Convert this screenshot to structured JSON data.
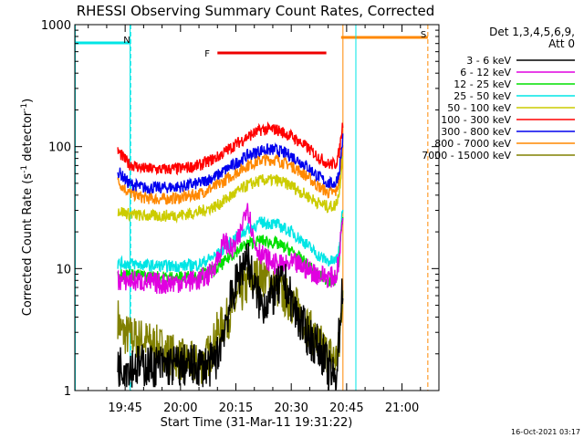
{
  "chart_data": {
    "type": "line",
    "title": "RHESSI Observing Summary Count Rates, Corrected",
    "xlabel": "Start Time (31-Mar-11 19:31:22)",
    "ylabel": "Corrected Count Rate (s",
    "ylabel_sup": "-1",
    "ylabel_mid": " detector",
    "ylabel_end": ")",
    "y_scale": "log",
    "ylim": [
      1,
      1000
    ],
    "xlim": [
      "19:31:22",
      "21:10:00"
    ],
    "x_ticks": [
      "19:45",
      "20:00",
      "20:15",
      "20:30",
      "20:45",
      "21:00"
    ],
    "y_ticks": [
      "1",
      "10",
      "100",
      "1000"
    ],
    "legend_title_1": "Det 1,3,4,5,6,9,",
    "legend_title_2": "Att 0",
    "legend_position": "top-right",
    "footer_date": "16-Oct-2021 03:17",
    "flags": [
      {
        "label": "N",
        "color": "#00e5e5",
        "start": "19:31:22",
        "end": "19:46:30",
        "edge_line": "19:46:30"
      },
      {
        "label": "F",
        "color": "#ee0000",
        "start": "20:10:00",
        "end": "20:39:30"
      },
      {
        "label": "S",
        "color": "#ff8800",
        "start": "20:43:30",
        "end": "21:07:00",
        "edge_line": "21:07:00"
      }
    ],
    "series": [
      {
        "name": "3 - 6 keV",
        "color": "#000000",
        "x": [
          "19:43",
          "19:44",
          "19:46",
          "19:50",
          "19:55",
          "20:00",
          "20:05",
          "20:08",
          "20:10",
          "20:12",
          "20:14",
          "20:16",
          "20:18",
          "20:20",
          "20:22",
          "20:25",
          "20:28",
          "20:31",
          "20:34",
          "20:36",
          "20:38",
          "20:40",
          "20:42",
          "20:43",
          "20:44"
        ],
        "y": [
          1.6,
          1.6,
          1.6,
          1.6,
          1.6,
          1.6,
          1.6,
          1.6,
          1.9,
          3.5,
          6,
          9,
          13,
          7,
          5,
          6,
          8,
          4.5,
          3,
          2.5,
          2.2,
          1.5,
          1.2,
          3,
          8
        ]
      },
      {
        "name": "6 - 12 keV",
        "color": "#e000e0",
        "x": [
          "19:43",
          "19:46",
          "19:50",
          "19:55",
          "20:00",
          "20:05",
          "20:08",
          "20:10",
          "20:12",
          "20:14",
          "20:16",
          "20:18",
          "20:20",
          "20:22",
          "20:25",
          "20:28",
          "20:31",
          "20:34",
          "20:37",
          "20:40",
          "20:42",
          "20:43",
          "20:44"
        ],
        "y": [
          8,
          8,
          7.8,
          7.5,
          7.8,
          8,
          9,
          12,
          17,
          14,
          18,
          35,
          16,
          13,
          11,
          10.5,
          11,
          10,
          9,
          8.5,
          8.5,
          12,
          30
        ]
      },
      {
        "name": "12 - 25 keV",
        "color": "#00e000",
        "x": [
          "19:43",
          "19:46",
          "19:50",
          "19:55",
          "20:00",
          "20:05",
          "20:10",
          "20:14",
          "20:18",
          "20:22",
          "20:26",
          "20:30",
          "20:34",
          "20:37",
          "20:40",
          "20:42",
          "20:43",
          "20:44"
        ],
        "y": [
          9,
          9,
          8.7,
          8.5,
          8.5,
          8.8,
          10,
          13,
          16,
          17,
          16,
          14,
          11,
          9,
          8,
          8,
          12,
          30
        ]
      },
      {
        "name": "25 - 50 keV",
        "color": "#00e5e5",
        "x": [
          "19:43",
          "19:46",
          "19:50",
          "19:55",
          "20:00",
          "20:05",
          "20:10",
          "20:14",
          "20:18",
          "20:22",
          "20:26",
          "20:30",
          "20:34",
          "20:37",
          "20:40",
          "20:42",
          "20:43",
          "20:44"
        ],
        "y": [
          11,
          11,
          10.7,
          10.5,
          10.5,
          10.8,
          13,
          17,
          21,
          24,
          23,
          20,
          16,
          13,
          11.5,
          11.5,
          14,
          35
        ]
      },
      {
        "name": "50 - 100 keV",
        "color": "#cccc00",
        "x": [
          "19:43",
          "19:46",
          "19:50",
          "19:55",
          "20:00",
          "20:05",
          "20:10",
          "20:14",
          "20:18",
          "20:22",
          "20:26",
          "20:30",
          "20:34",
          "20:37",
          "20:40",
          "20:42",
          "20:43",
          "20:44"
        ],
        "y": [
          30,
          28,
          27,
          27,
          27.5,
          29,
          33,
          40,
          48,
          53,
          53,
          48,
          40,
          35,
          32,
          33,
          42,
          90
        ]
      },
      {
        "name": "100 - 300 keV",
        "color": "#ff0000",
        "x": [
          "19:43",
          "19:46",
          "19:50",
          "19:55",
          "20:00",
          "20:05",
          "20:10",
          "20:14",
          "20:18",
          "20:22",
          "20:26",
          "20:30",
          "20:34",
          "20:37",
          "20:40",
          "20:42",
          "20:43",
          "20:44"
        ],
        "y": [
          92,
          72,
          66,
          65,
          66,
          70,
          82,
          100,
          120,
          138,
          138,
          122,
          100,
          84,
          72,
          72,
          90,
          160
        ]
      },
      {
        "name": "300 - 800 keV",
        "color": "#0000ee",
        "x": [
          "19:43",
          "19:46",
          "19:50",
          "19:55",
          "20:00",
          "20:05",
          "20:10",
          "20:14",
          "20:18",
          "20:22",
          "20:26",
          "20:30",
          "20:34",
          "20:37",
          "20:40",
          "20:42",
          "20:43",
          "20:44"
        ],
        "y": [
          63,
          50,
          46,
          46,
          47,
          50,
          58,
          70,
          84,
          94,
          94,
          84,
          70,
          58,
          50,
          50,
          62,
          120
        ]
      },
      {
        "name": "800 - 7000 keV",
        "color": "#ff8800",
        "x": [
          "19:43",
          "19:46",
          "19:50",
          "19:55",
          "20:00",
          "20:05",
          "20:10",
          "20:14",
          "20:18",
          "20:22",
          "20:26",
          "20:30",
          "20:34",
          "20:37",
          "20:40",
          "20:42",
          "20:43",
          "20:44"
        ],
        "y": [
          52,
          42,
          38,
          37,
          38,
          41,
          48,
          58,
          70,
          78,
          78,
          70,
          58,
          48,
          42,
          42,
          52,
          100
        ]
      },
      {
        "name": "7000 - 15000 keV",
        "color": "#808000",
        "x": [
          "19:43",
          "19:44",
          "19:46",
          "19:50",
          "19:55",
          "20:00",
          "20:05",
          "20:08",
          "20:10",
          "20:13",
          "20:16",
          "20:19",
          "20:22",
          "20:25",
          "20:28",
          "20:31",
          "20:34",
          "20:37",
          "20:40",
          "20:42",
          "20:43",
          "20:44"
        ],
        "y": [
          4,
          3,
          2.8,
          2.6,
          2.2,
          1.8,
          1.6,
          2,
          3,
          4,
          6,
          8,
          9,
          7.5,
          6,
          5,
          3.5,
          2.5,
          2,
          1.8,
          2.2,
          8
        ]
      }
    ]
  }
}
